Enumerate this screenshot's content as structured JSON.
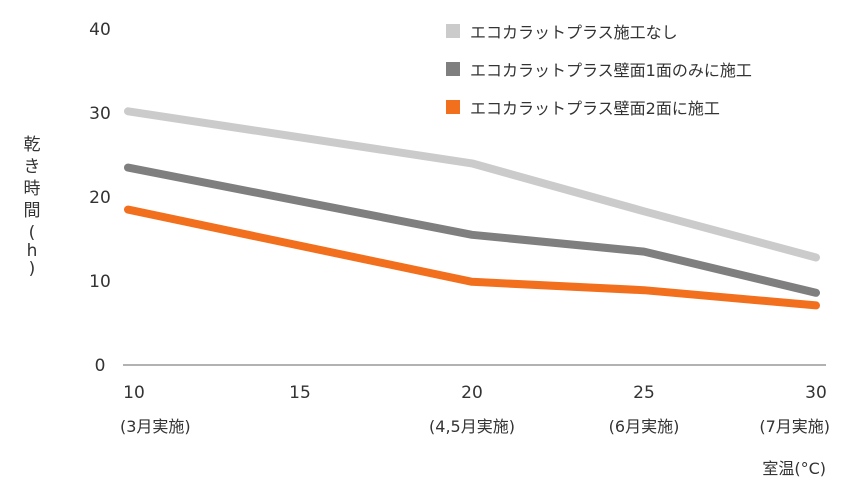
{
  "chart_data": {
    "type": "line",
    "x": [
      10,
      15,
      20,
      25,
      30
    ],
    "x_tick_labels": [
      "10",
      "15",
      "20",
      "25",
      "30"
    ],
    "x_tick_sublabels": [
      "(3月実施)",
      "",
      "(4,5月実施)",
      "(6月実施)",
      "(7月実施)"
    ],
    "xlabel": "室温(°C)",
    "ylabel_chars": [
      "乾",
      "き",
      "時",
      "間",
      "(",
      "h",
      ")"
    ],
    "ylim": [
      0,
      40
    ],
    "y_ticks": [
      0,
      10,
      20,
      30,
      40
    ],
    "xlim": [
      10,
      30
    ],
    "grid": false,
    "legend_position": "top-right",
    "series": [
      {
        "name": "エコカラットプラス施工なし",
        "color": "#cbcbcb",
        "points": [
          [
            10,
            30.2
          ],
          [
            20,
            24.0
          ],
          [
            25,
            18.3
          ],
          [
            30,
            12.8
          ]
        ]
      },
      {
        "name": "エコカラットプラス壁面1面のみに施工",
        "color": "#7f7f7f",
        "points": [
          [
            10,
            23.5
          ],
          [
            20,
            15.5
          ],
          [
            25,
            13.5
          ],
          [
            30,
            8.6
          ]
        ]
      },
      {
        "name": "エコカラットプラス壁面2面に施工",
        "color": "#f26f1e",
        "points": [
          [
            10,
            18.5
          ],
          [
            20,
            9.9
          ],
          [
            25,
            8.9
          ],
          [
            30,
            7.1
          ]
        ]
      }
    ]
  }
}
